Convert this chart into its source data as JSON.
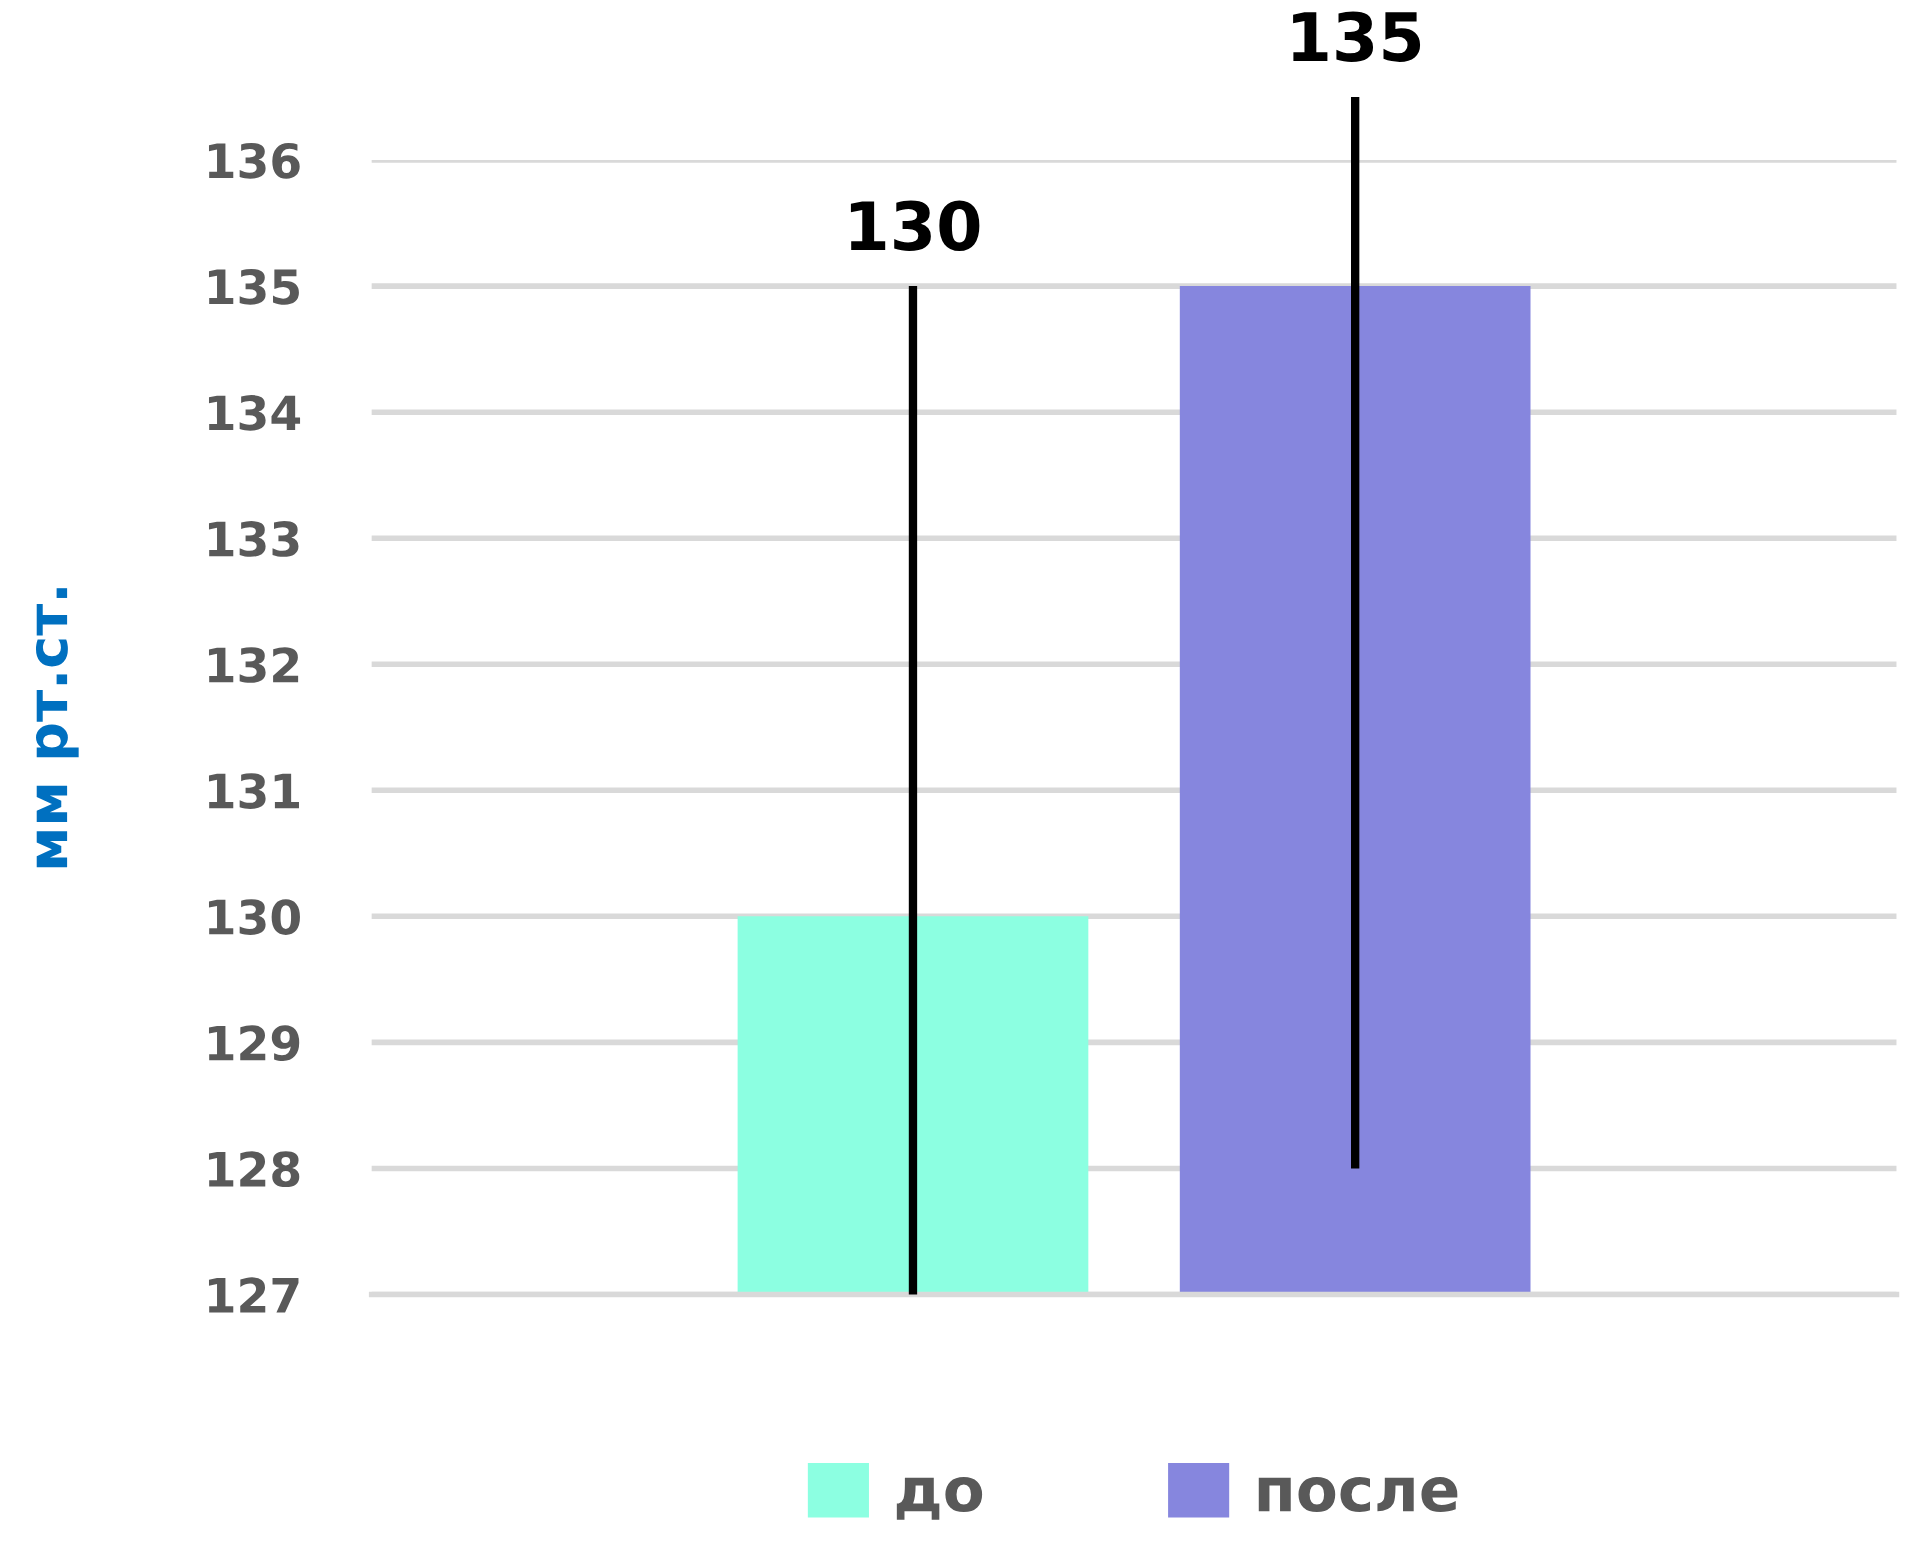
{
  "chart_data": {
    "type": "bar",
    "ylabel": "мм рт.ст.",
    "categories": [
      null
    ],
    "series": [
      {
        "name": "до",
        "color": "#8cffe1",
        "values": [
          130
        ],
        "errors": [
          [
            127,
            135
          ]
        ]
      },
      {
        "name": "после",
        "color": "#8686de",
        "values": [
          135
        ],
        "errors": [
          [
            128,
            136.5
          ]
        ]
      }
    ],
    "ylim": [
      127,
      136
    ],
    "yticks": [
      127,
      128,
      129,
      130,
      131,
      132,
      133,
      134,
      135,
      136
    ],
    "grid": "y",
    "legend": "bottom",
    "annotations": [
      {
        "text": "130",
        "y": 135
      },
      {
        "text": "135",
        "y": 136.5
      }
    ]
  }
}
